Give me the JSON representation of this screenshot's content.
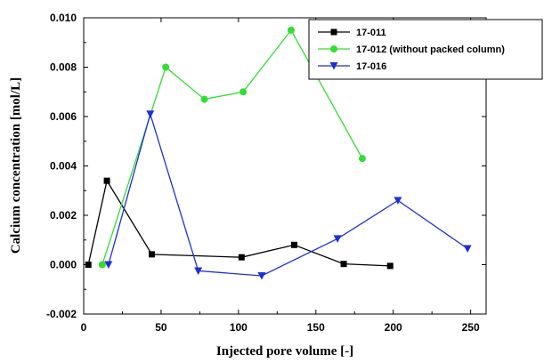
{
  "chart_data": {
    "type": "line",
    "title": "",
    "xlabel": "Injected pore volume [-]",
    "ylabel": "Calcium concentration [mol/L]",
    "xlim": [
      0,
      260
    ],
    "ylim": [
      -0.002,
      0.01
    ],
    "x_ticks": [
      "0",
      "50",
      "100",
      "150",
      "200",
      "250"
    ],
    "y_ticks": [
      "-0.002",
      "0.000",
      "0.002",
      "0.004",
      "0.006",
      "0.008",
      "0.010"
    ],
    "grid": false,
    "legend_position": "top-right",
    "series": [
      {
        "name": "17-011",
        "color": "#000000",
        "marker": "square",
        "points": [
          [
            3,
            0.0
          ],
          [
            15,
            0.0034
          ],
          [
            44,
            0.00042
          ],
          [
            102,
            0.0003
          ],
          [
            136,
            0.0008
          ],
          [
            168,
            3e-05
          ],
          [
            198,
            -5e-05
          ]
        ]
      },
      {
        "name": "17-012 (without packed column)",
        "color": "#33dd33",
        "marker": "circle",
        "points": [
          [
            12,
            0.0
          ],
          [
            53,
            0.008
          ],
          [
            78,
            0.0067
          ],
          [
            103,
            0.007
          ],
          [
            134,
            0.0095
          ],
          [
            180,
            0.0043
          ]
        ]
      },
      {
        "name": "17-016",
        "color": "#1f2fd6",
        "marker": "triangle-down",
        "points": [
          [
            16,
            0.0
          ],
          [
            43,
            0.0061
          ],
          [
            74,
            -0.00025
          ],
          [
            115,
            -0.00045
          ],
          [
            164,
            0.00105
          ],
          [
            203,
            0.0026
          ],
          [
            248,
            0.00065
          ]
        ]
      }
    ]
  }
}
